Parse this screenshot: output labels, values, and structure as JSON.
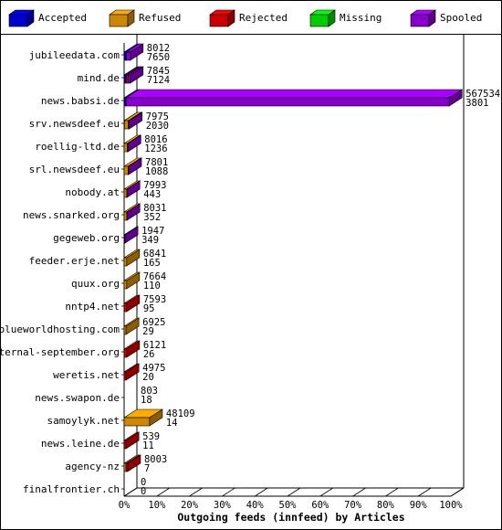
{
  "legend": [
    {
      "label": "Accepted",
      "color": "#0000ff"
    },
    {
      "label": "Refused",
      "color": "#ffaa00"
    },
    {
      "label": "Rejected",
      "color": "#ff0000"
    },
    {
      "label": "Missing",
      "color": "#00ff00"
    },
    {
      "label": "Spooled",
      "color": "#aa00ff"
    }
  ],
  "chart_data": {
    "type": "bar",
    "orientation": "horizontal",
    "stacked": true,
    "title": "Outgoing feeds (innfeed) by Articles",
    "xlim": [
      0,
      100
    ],
    "x_ticks": [
      "0%",
      "10%",
      "20%",
      "30%",
      "40%",
      "50%",
      "60%",
      "70%",
      "80%",
      "90%",
      "100%"
    ],
    "categories": [
      "jubileedata.com",
      "mind.de",
      "news.babsi.de",
      "srv.newsdeef.eu",
      "roellig-ltd.de",
      "srl.newsdeef.eu",
      "nobody.at",
      "news.snarked.org",
      "gegeweb.org",
      "feeder.erje.net",
      "quux.org",
      "nntp4.net",
      "blueworldhosting.com",
      "eternal-september.org",
      "weretis.net",
      "news.swapon.de",
      "samoylyk.net",
      "news.leine.de",
      "agency-nz",
      "finalfrontier.ch"
    ],
    "labels_top": [
      "8012",
      "7845",
      "567534",
      "7975",
      "8016",
      "7801",
      "7993",
      "8031",
      "1947",
      "6841",
      "7664",
      "7593",
      "6925",
      "6121",
      "4975",
      "803",
      "48109",
      "539",
      "8003",
      "0"
    ],
    "labels_bottom": [
      "7650",
      "7124",
      "3801",
      "2030",
      "1236",
      "1088",
      "443",
      "352",
      "349",
      "165",
      "110",
      "95",
      "29",
      "26",
      "20",
      "18",
      "14",
      "11",
      "7",
      "0"
    ],
    "series": [
      {
        "name": "Accepted",
        "color": "#0000ff",
        "values": [
          0.7,
          0.7,
          0.6,
          0.1,
          0,
          0,
          0,
          0,
          0,
          0,
          0,
          0,
          0,
          0,
          0,
          0,
          0,
          0,
          0,
          0
        ]
      },
      {
        "name": "Refused",
        "color": "#ffaa00",
        "values": [
          0,
          0,
          0,
          1.2,
          1.0,
          1.2,
          0.8,
          0.8,
          0.2,
          0.8,
          0.8,
          0,
          0.6,
          0,
          0,
          0,
          7.8,
          0,
          0.6,
          0
        ]
      },
      {
        "name": "Rejected",
        "color": "#ff0000",
        "values": [
          0,
          0.6,
          0,
          0,
          0,
          0,
          0,
          0,
          0,
          0,
          0,
          0.8,
          0,
          0.8,
          0.6,
          0,
          0,
          0.6,
          0.5,
          0
        ]
      },
      {
        "name": "Missing",
        "color": "#00ff00",
        "values": [
          0,
          0,
          0,
          0,
          0,
          0,
          0,
          0,
          0,
          0,
          0,
          0,
          0,
          0,
          0,
          0,
          0,
          0,
          0,
          0
        ]
      },
      {
        "name": "Spooled",
        "color": "#aa00ff",
        "values": [
          1.2,
          0.6,
          98.9,
          0.3,
          0.2,
          0.2,
          0.1,
          0.1,
          0.1,
          0,
          0,
          0,
          0,
          0,
          0,
          0,
          0,
          0,
          0,
          0
        ]
      }
    ]
  }
}
